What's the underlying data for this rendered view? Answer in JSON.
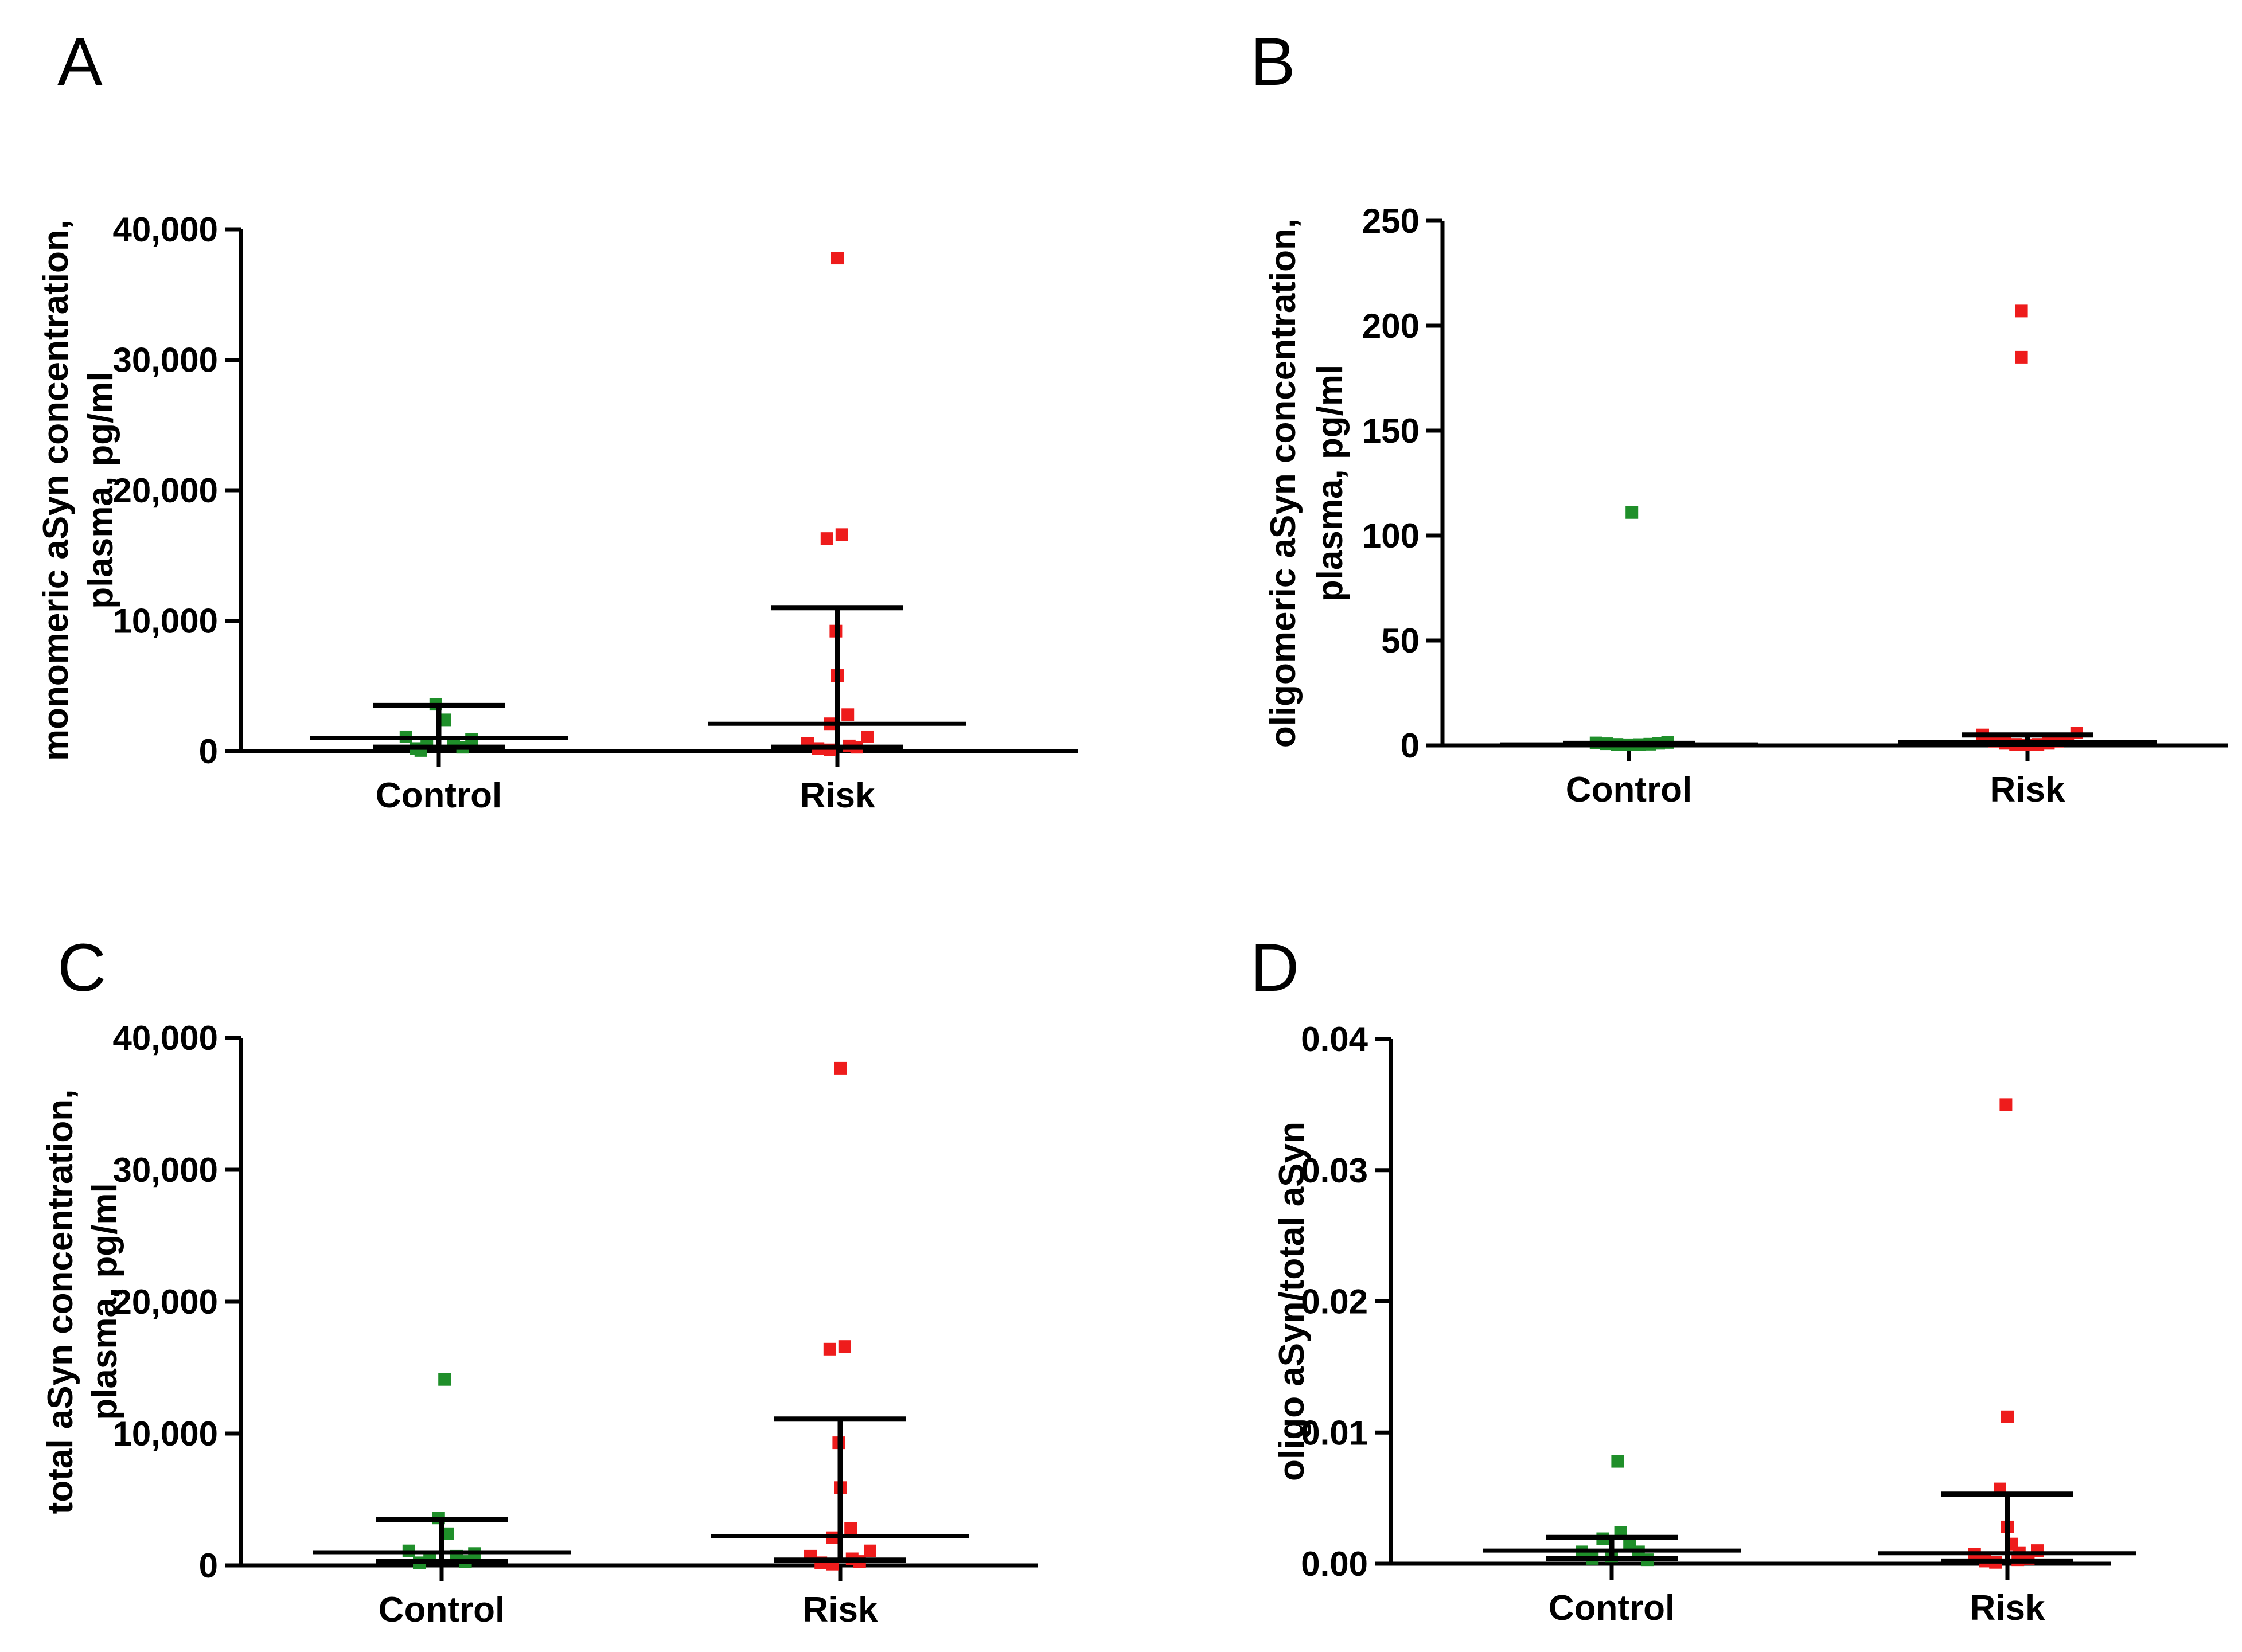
{
  "colors": {
    "control": "#1f8f2a",
    "risk": "#ee1c1c",
    "axis": "#000000"
  },
  "chart_data": [
    {
      "panel": "A",
      "type": "scatter",
      "ylabel_lines": [
        "monomeric aSyn concentration,",
        "plasma, pg/ml"
      ],
      "categories": [
        "Control",
        "Risk"
      ],
      "ylim": [
        0,
        40000
      ],
      "yticks": [
        0,
        10000,
        20000,
        30000,
        40000
      ],
      "ytick_labels": [
        "0",
        "10,000",
        "20,000",
        "30,000",
        "40,000"
      ],
      "series": [
        {
          "name": "Control",
          "color": "#1f8f2a",
          "points": [
            [
              -0.22,
              1100
            ],
            [
              -0.15,
              200
            ],
            [
              -0.08,
              600
            ],
            [
              -0.02,
              3600
            ],
            [
              0.04,
              2400
            ],
            [
              0.1,
              700
            ],
            [
              0.16,
              300
            ],
            [
              0.22,
              900
            ],
            [
              -0.12,
              50
            ]
          ],
          "median": 1000,
          "iqr": [
            300,
            3500
          ]
        },
        {
          "name": "Risk",
          "color": "#ee1c1c",
          "points": [
            [
              0,
              37800
            ],
            [
              -0.07,
              16300
            ],
            [
              0.03,
              16600
            ],
            [
              -0.01,
              9200
            ],
            [
              0.0,
              5800
            ],
            [
              -0.05,
              2100
            ],
            [
              0.07,
              2800
            ],
            [
              -0.2,
              600
            ],
            [
              0.2,
              1100
            ],
            [
              -0.13,
              200
            ],
            [
              0.13,
              300
            ],
            [
              -0.05,
              100
            ],
            [
              0.08,
              400
            ]
          ],
          "median": 2100,
          "iqr": [
            300,
            11000
          ]
        }
      ]
    },
    {
      "panel": "B",
      "type": "scatter",
      "ylabel_lines": [
        "oligomeric aSyn concentration,",
        "plasma, pg/ml"
      ],
      "categories": [
        "Control",
        "Risk"
      ],
      "ylim": [
        0,
        250
      ],
      "yticks": [
        0,
        50,
        100,
        150,
        200,
        250
      ],
      "ytick_labels": [
        "0",
        "50",
        "100",
        "150",
        "200",
        "250"
      ],
      "series": [
        {
          "name": "Control",
          "color": "#1f8f2a",
          "points": [
            [
              0.02,
              111
            ],
            [
              -0.22,
              1.2
            ],
            [
              -0.15,
              0.8
            ],
            [
              -0.08,
              0.5
            ],
            [
              0.0,
              0.3
            ],
            [
              0.07,
              0.4
            ],
            [
              0.14,
              0.6
            ],
            [
              0.2,
              1.0
            ],
            [
              0.26,
              1.4
            ]
          ],
          "median": 0.5,
          "iqr": [
            0.3,
            1.0
          ]
        },
        {
          "name": "Risk",
          "color": "#ee1c1c",
          "points": [
            [
              -0.04,
              207
            ],
            [
              -0.04,
              185
            ],
            [
              -0.3,
              5
            ],
            [
              -0.22,
              2
            ],
            [
              -0.15,
              1
            ],
            [
              -0.08,
              0.5
            ],
            [
              0,
              0.3
            ],
            [
              0.07,
              0.5
            ],
            [
              0.14,
              1
            ],
            [
              0.2,
              2
            ],
            [
              0.27,
              3
            ],
            [
              0.33,
              6
            ]
          ],
          "median": 1.5,
          "iqr": [
            0.5,
            5
          ]
        }
      ]
    },
    {
      "panel": "C",
      "type": "scatter",
      "ylabel_lines": [
        "total aSyn concentration,",
        "plasma, pg/ml"
      ],
      "categories": [
        "Control",
        "Risk"
      ],
      "ylim": [
        0,
        40000
      ],
      "yticks": [
        0,
        10000,
        20000,
        30000,
        40000
      ],
      "ytick_labels": [
        "0",
        "10,000",
        "20,000",
        "30,000",
        "40,000"
      ],
      "series": [
        {
          "name": "Control",
          "color": "#1f8f2a",
          "points": [
            [
              0.02,
              14100
            ],
            [
              -0.22,
              1100
            ],
            [
              -0.15,
              200
            ],
            [
              -0.08,
              600
            ],
            [
              -0.02,
              3600
            ],
            [
              0.04,
              2400
            ],
            [
              0.1,
              700
            ],
            [
              0.16,
              300
            ],
            [
              0.22,
              900
            ]
          ],
          "median": 1000,
          "iqr": [
            300,
            3500
          ]
        },
        {
          "name": "Risk",
          "color": "#ee1c1c",
          "points": [
            [
              0,
              37700
            ],
            [
              -0.07,
              16400
            ],
            [
              0.03,
              16600
            ],
            [
              -0.01,
              9300
            ],
            [
              0.0,
              5900
            ],
            [
              -0.05,
              2100
            ],
            [
              0.07,
              2800
            ],
            [
              -0.2,
              700
            ],
            [
              0.2,
              1100
            ],
            [
              -0.13,
              200
            ],
            [
              0.13,
              300
            ],
            [
              -0.05,
              100
            ],
            [
              0.08,
              500
            ]
          ],
          "median": 2200,
          "iqr": [
            400,
            11100
          ]
        }
      ]
    },
    {
      "panel": "D",
      "type": "scatter",
      "ylabel_lines": [
        "oligo aSyn/total aSyn"
      ],
      "categories": [
        "Control",
        "Risk"
      ],
      "ylim": [
        0,
        0.04
      ],
      "yticks": [
        0,
        0.01,
        0.02,
        0.03,
        0.04
      ],
      "ytick_labels": [
        "0.00",
        "0.01",
        "0.02",
        "0.03",
        "0.04"
      ],
      "series": [
        {
          "name": "Control",
          "color": "#1f8f2a",
          "points": [
            [
              0.04,
              0.0078
            ],
            [
              -0.2,
              0.0009
            ],
            [
              -0.13,
              0.0004
            ],
            [
              -0.06,
              0.0019
            ],
            [
              0.0,
              0.0006
            ],
            [
              0.06,
              0.0024
            ],
            [
              0.12,
              0.0014
            ],
            [
              0.18,
              0.0009
            ],
            [
              0.24,
              0.0003
            ]
          ],
          "median": 0.001,
          "iqr": [
            0.0004,
            0.002
          ]
        },
        {
          "name": "Risk",
          "color": "#ee1c1c",
          "points": [
            [
              -0.01,
              0.035
            ],
            [
              0.0,
              0.0112
            ],
            [
              -0.05,
              0.0057
            ],
            [
              0.0,
              0.0028
            ],
            [
              0.03,
              0.0015
            ],
            [
              -0.22,
              0.0007
            ],
            [
              0.2,
              0.001
            ],
            [
              -0.15,
              0.0002
            ],
            [
              -0.08,
              0.0001
            ],
            [
              0.07,
              0.0003
            ],
            [
              0.14,
              0.0004
            ],
            [
              0.08,
              0.0008
            ]
          ],
          "median": 0.0008,
          "iqr": [
            0.0002,
            0.0053
          ]
        }
      ]
    }
  ]
}
